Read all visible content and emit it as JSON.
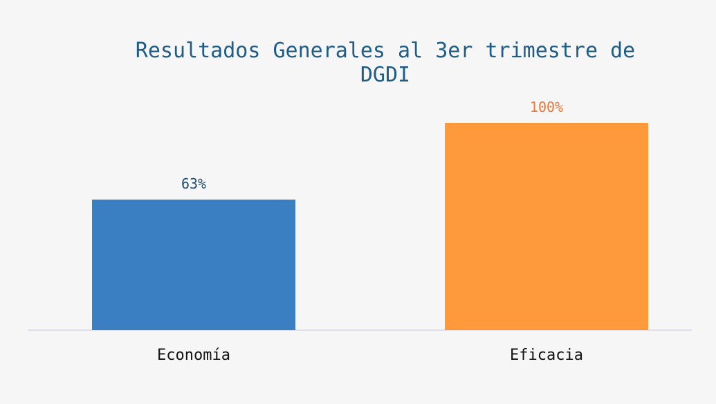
{
  "chart_data": {
    "type": "bar",
    "title": "Resultados Generales al 3er trimestre de DGDI",
    "categories": [
      "Economía",
      "Eficacia"
    ],
    "values": [
      63,
      100
    ],
    "value_labels": [
      "63%",
      "100%"
    ],
    "colors": [
      "#3a7fc1",
      "#ff9a3c"
    ]
  }
}
